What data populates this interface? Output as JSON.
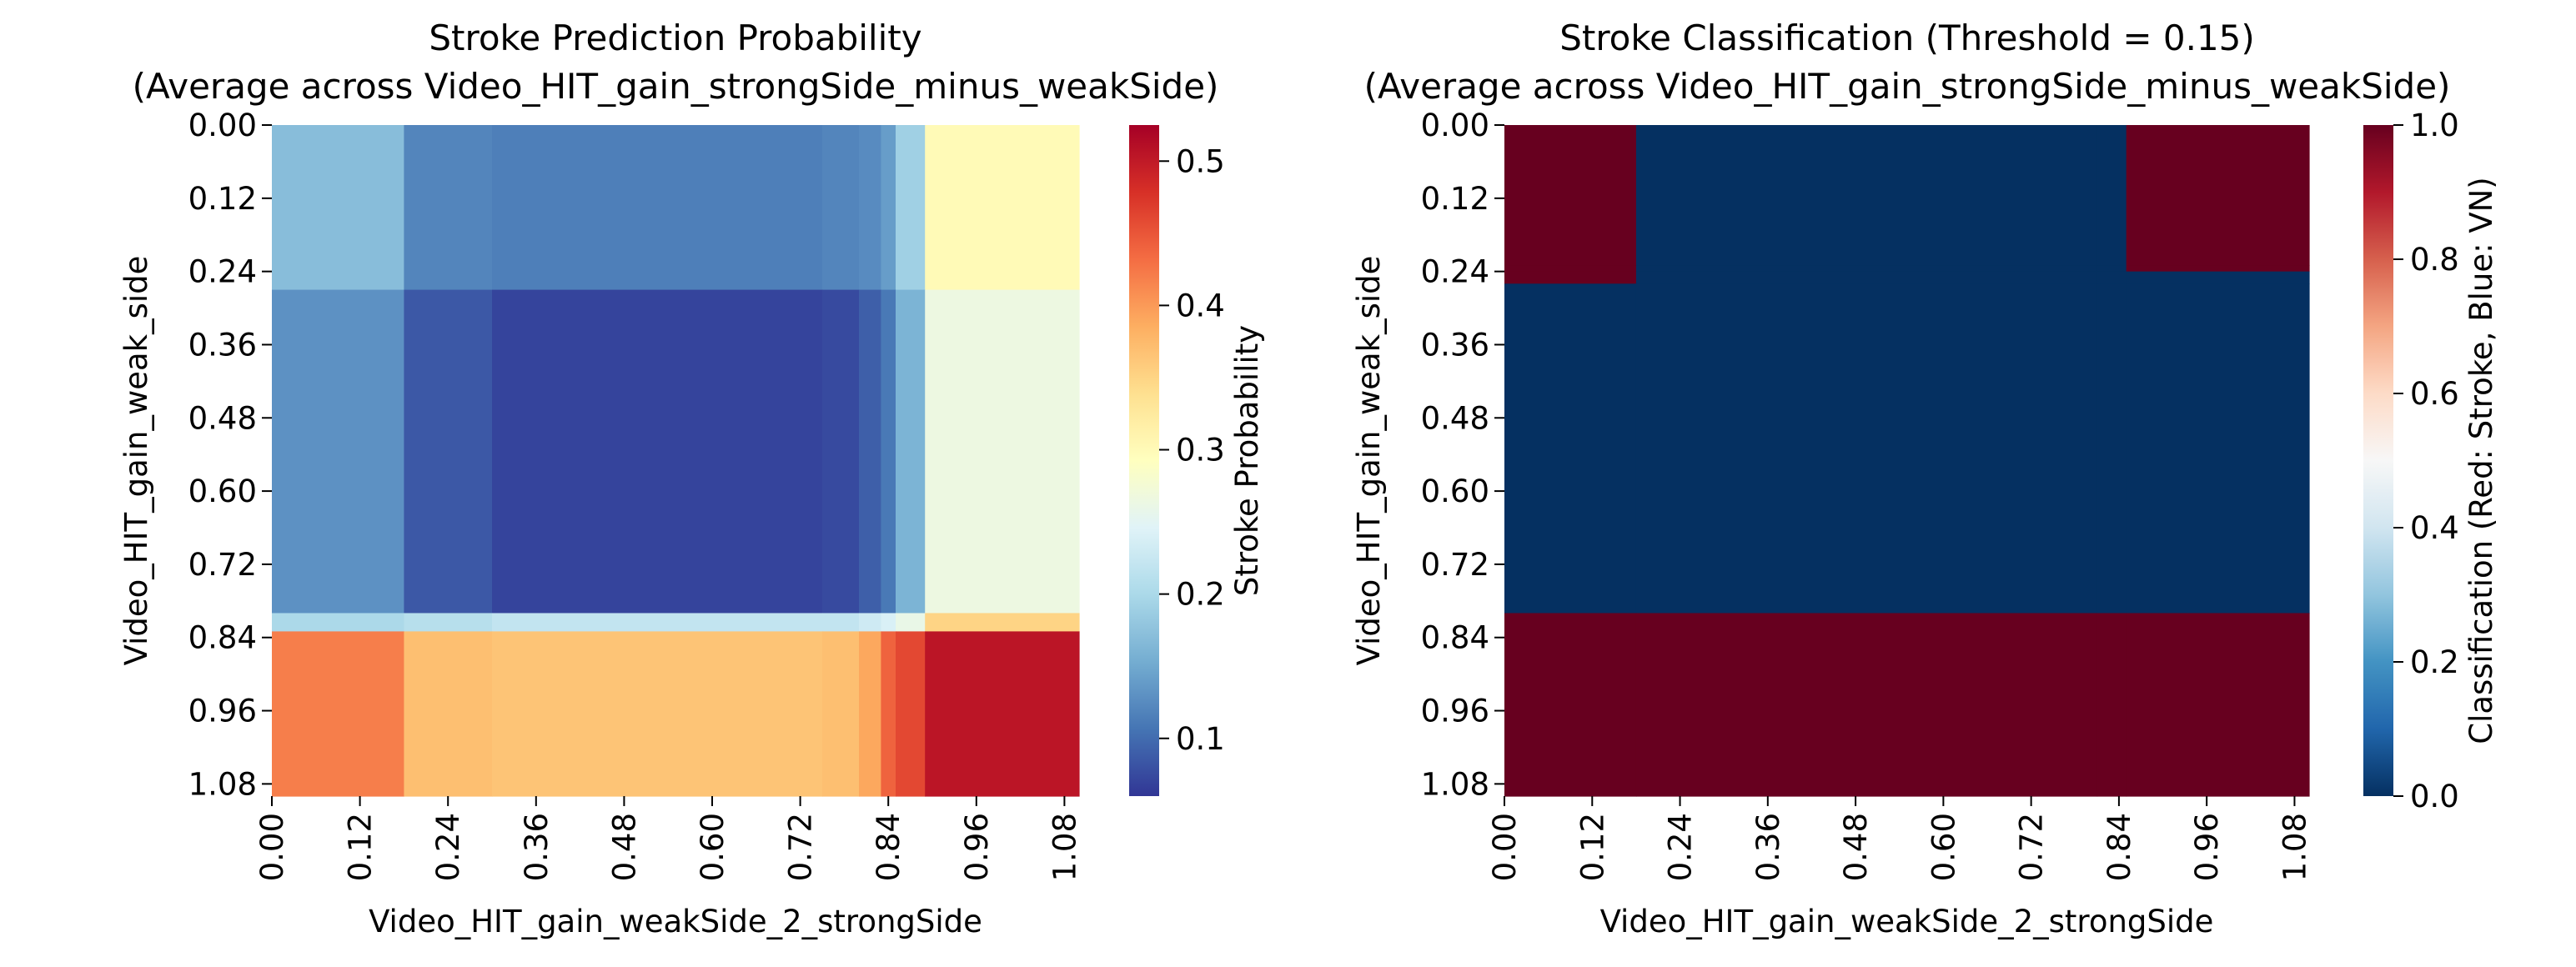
{
  "chart_data": [
    {
      "type": "heatmap",
      "title_line1": "Stroke Prediction Probability",
      "title_line2": "(Average across Video_HIT_gain_strongSide_minus_weakSide)",
      "xlabel": "Video_HIT_gain_weakSide_2_strongSide",
      "ylabel": "Video_HIT_gain_weak_side",
      "x_ticks": [
        "0.00",
        "0.12",
        "0.24",
        "0.36",
        "0.48",
        "0.60",
        "0.72",
        "0.84",
        "0.96",
        "1.08"
      ],
      "y_ticks": [
        "0.00",
        "0.12",
        "0.24",
        "0.36",
        "0.48",
        "0.60",
        "0.72",
        "0.84",
        "0.96",
        "1.08"
      ],
      "xlim": [
        0.0,
        1.1
      ],
      "ylim": [
        0.0,
        1.1
      ],
      "colormap": "RdYlBu_r",
      "colorbar_label": "Stroke Probability",
      "colorbar_ticks": [
        "0.1",
        "0.2",
        "0.3",
        "0.4",
        "0.5"
      ],
      "colorbar_tick_values": [
        0.1,
        0.2,
        0.3,
        0.4,
        0.5
      ],
      "vmin": 0.06,
      "vmax": 0.525,
      "x_breaks": [
        0.0,
        0.18,
        0.3,
        0.75,
        0.8,
        0.83,
        0.85,
        0.89,
        1.1
      ],
      "y_breaks": [
        0.0,
        0.27,
        0.8,
        0.83,
        1.1
      ],
      "values": [
        [
          0.17,
          0.12,
          0.115,
          0.12,
          0.125,
          0.14,
          0.19,
          0.3
        ],
        [
          0.13,
          0.085,
          0.07,
          0.075,
          0.09,
          0.11,
          0.16,
          0.265
        ],
        [
          0.2,
          0.21,
          0.22,
          0.22,
          0.23,
          0.24,
          0.26,
          0.35
        ],
        [
          0.42,
          0.37,
          0.365,
          0.37,
          0.39,
          0.44,
          0.46,
          0.505
        ]
      ]
    },
    {
      "type": "heatmap",
      "title_line1": "Stroke Classification (Threshold = 0.15)",
      "title_line2": "(Average across Video_HIT_gain_strongSide_minus_weakSide)",
      "xlabel": "Video_HIT_gain_weakSide_2_strongSide",
      "ylabel": "Video_HIT_gain_weak_side",
      "x_ticks": [
        "0.00",
        "0.12",
        "0.24",
        "0.36",
        "0.48",
        "0.60",
        "0.72",
        "0.84",
        "0.96",
        "1.08"
      ],
      "y_ticks": [
        "0.00",
        "0.12",
        "0.24",
        "0.36",
        "0.48",
        "0.60",
        "0.72",
        "0.84",
        "0.96",
        "1.08"
      ],
      "xlim": [
        0.0,
        1.1
      ],
      "ylim": [
        0.0,
        1.1
      ],
      "colormap": "RdBu_r",
      "colorbar_label": "Classification (Red: Stroke, Blue: VN)",
      "colorbar_ticks": [
        "0.0",
        "0.2",
        "0.4",
        "0.6",
        "0.8",
        "1.0"
      ],
      "colorbar_tick_values": [
        0.0,
        0.2,
        0.4,
        0.6,
        0.8,
        1.0
      ],
      "vmin": 0.0,
      "vmax": 1.0,
      "x_breaks": [
        0.0,
        0.18,
        0.81,
        0.85,
        1.1
      ],
      "y_breaks": [
        0.0,
        0.23,
        0.24,
        0.26,
        0.8,
        1.1
      ],
      "values": [
        [
          1,
          0,
          0,
          1
        ],
        [
          1,
          0,
          0,
          1
        ],
        [
          1,
          0,
          0,
          0
        ],
        [
          0,
          0,
          0,
          0
        ],
        [
          1,
          1,
          1,
          1
        ]
      ]
    }
  ]
}
